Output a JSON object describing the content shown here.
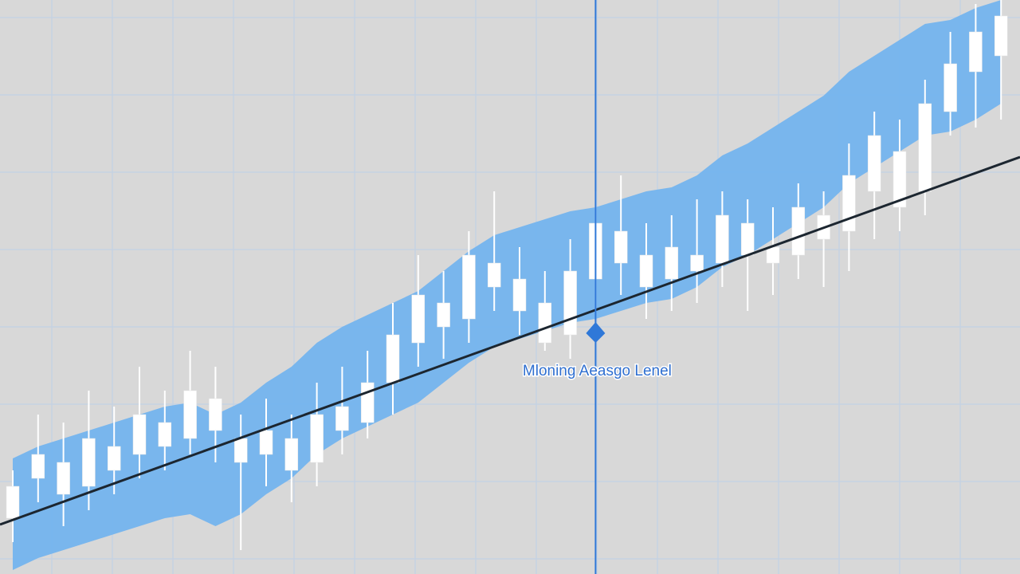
{
  "chart_data": {
    "type": "candlestick",
    "annotation": "Mloning Aeasgo Lenel",
    "ylim": [
      0,
      720
    ],
    "candle_color": "#ffffff",
    "band_color": "#6fb3ef",
    "trend_color": "#1c2630",
    "cursor_color": "#2f78d8",
    "open": [
      70,
      120,
      140,
      110,
      160,
      150,
      190,
      170,
      220,
      170,
      150,
      170,
      140,
      210,
      190,
      240,
      290,
      340,
      320,
      390,
      370,
      340,
      300,
      370,
      430,
      400,
      370,
      400,
      390,
      440,
      410,
      400,
      450,
      430,
      480,
      530,
      480,
      580,
      630,
      650
    ],
    "close": [
      110,
      150,
      100,
      170,
      130,
      200,
      160,
      230,
      180,
      140,
      180,
      130,
      200,
      180,
      240,
      300,
      350,
      310,
      400,
      360,
      330,
      290,
      380,
      440,
      390,
      360,
      410,
      380,
      450,
      400,
      390,
      460,
      420,
      500,
      550,
      460,
      590,
      640,
      680,
      700
    ],
    "high": [
      130,
      200,
      190,
      230,
      210,
      260,
      230,
      280,
      260,
      200,
      220,
      200,
      240,
      260,
      280,
      340,
      400,
      380,
      430,
      480,
      410,
      380,
      420,
      480,
      500,
      440,
      450,
      470,
      480,
      470,
      460,
      490,
      480,
      540,
      580,
      570,
      620,
      680,
      715,
      720
    ],
    "low": [
      40,
      90,
      60,
      80,
      100,
      120,
      130,
      150,
      140,
      30,
      110,
      90,
      110,
      150,
      170,
      200,
      260,
      270,
      290,
      330,
      300,
      280,
      270,
      330,
      350,
      320,
      330,
      340,
      360,
      330,
      350,
      370,
      360,
      380,
      420,
      430,
      450,
      550,
      560,
      570
    ],
    "band": {
      "upper": [
        145,
        160,
        170,
        180,
        190,
        200,
        210,
        215,
        200,
        215,
        240,
        260,
        290,
        310,
        325,
        340,
        355,
        380,
        405,
        425,
        435,
        445,
        455,
        460,
        470,
        480,
        485,
        500,
        525,
        540,
        560,
        580,
        600,
        630,
        650,
        670,
        690,
        695,
        710,
        720
      ],
      "lower": [
        5,
        20,
        30,
        40,
        50,
        60,
        70,
        75,
        60,
        75,
        100,
        120,
        150,
        170,
        185,
        200,
        215,
        240,
        265,
        285,
        295,
        305,
        315,
        320,
        330,
        340,
        345,
        360,
        385,
        400,
        420,
        440,
        460,
        490,
        510,
        530,
        550,
        555,
        570,
        590
      ]
    },
    "trendline": [
      62,
      523
    ],
    "cursor": {
      "index": 23,
      "value": 302
    }
  }
}
